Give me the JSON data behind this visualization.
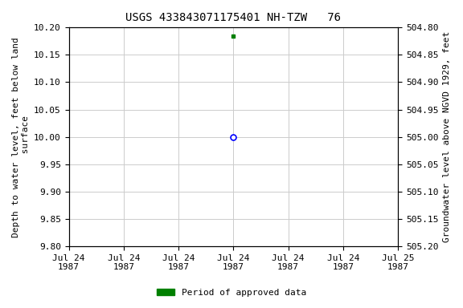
{
  "title": "USGS 433843071175401 NH-TZW   76",
  "ylabel_left": "Depth to water level, feet below land\n surface",
  "ylabel_right": "Groundwater level above NGVD 1929, feet",
  "ylim_left_top": 9.8,
  "ylim_left_bottom": 10.2,
  "ylim_right_top": 505.2,
  "ylim_right_bottom": 504.8,
  "yticks_left": [
    9.8,
    9.85,
    9.9,
    9.95,
    10.0,
    10.05,
    10.1,
    10.15,
    10.2
  ],
  "yticks_right": [
    505.2,
    505.15,
    505.1,
    505.05,
    505.0,
    504.95,
    504.9,
    504.85,
    504.8
  ],
  "ytick_labels_left": [
    "9.80",
    "9.85",
    "9.90",
    "9.95",
    "10.00",
    "10.05",
    "10.10",
    "10.15",
    "10.20"
  ],
  "ytick_labels_right": [
    "505.20",
    "505.15",
    "505.10",
    "505.05",
    "505.00",
    "504.95",
    "504.90",
    "504.85",
    "504.80"
  ],
  "point_open_x_hours": 12,
  "point_open_y": 10.0,
  "point_open_color": "blue",
  "point_filled_x_hours": 12,
  "point_filled_y": 10.185,
  "point_filled_color": "green",
  "grid_color": "#cccccc",
  "background_color": "#ffffff",
  "title_fontsize": 10,
  "axis_label_fontsize": 8,
  "tick_fontsize": 8,
  "legend_label": "Period of approved data",
  "legend_color": "green",
  "x_start_day": "1987-07-24",
  "x_end_day": "1987-07-25",
  "xtick_hours": [
    0,
    4,
    8,
    12,
    16,
    20,
    24
  ],
  "xtick_labels": [
    "Jul 24\n1987",
    "Jul 24\n1987",
    "Jul 24\n1987",
    "Jul 24\n1987",
    "Jul 24\n1987",
    "Jul 24\n1987",
    "Jul 25\n1987"
  ]
}
